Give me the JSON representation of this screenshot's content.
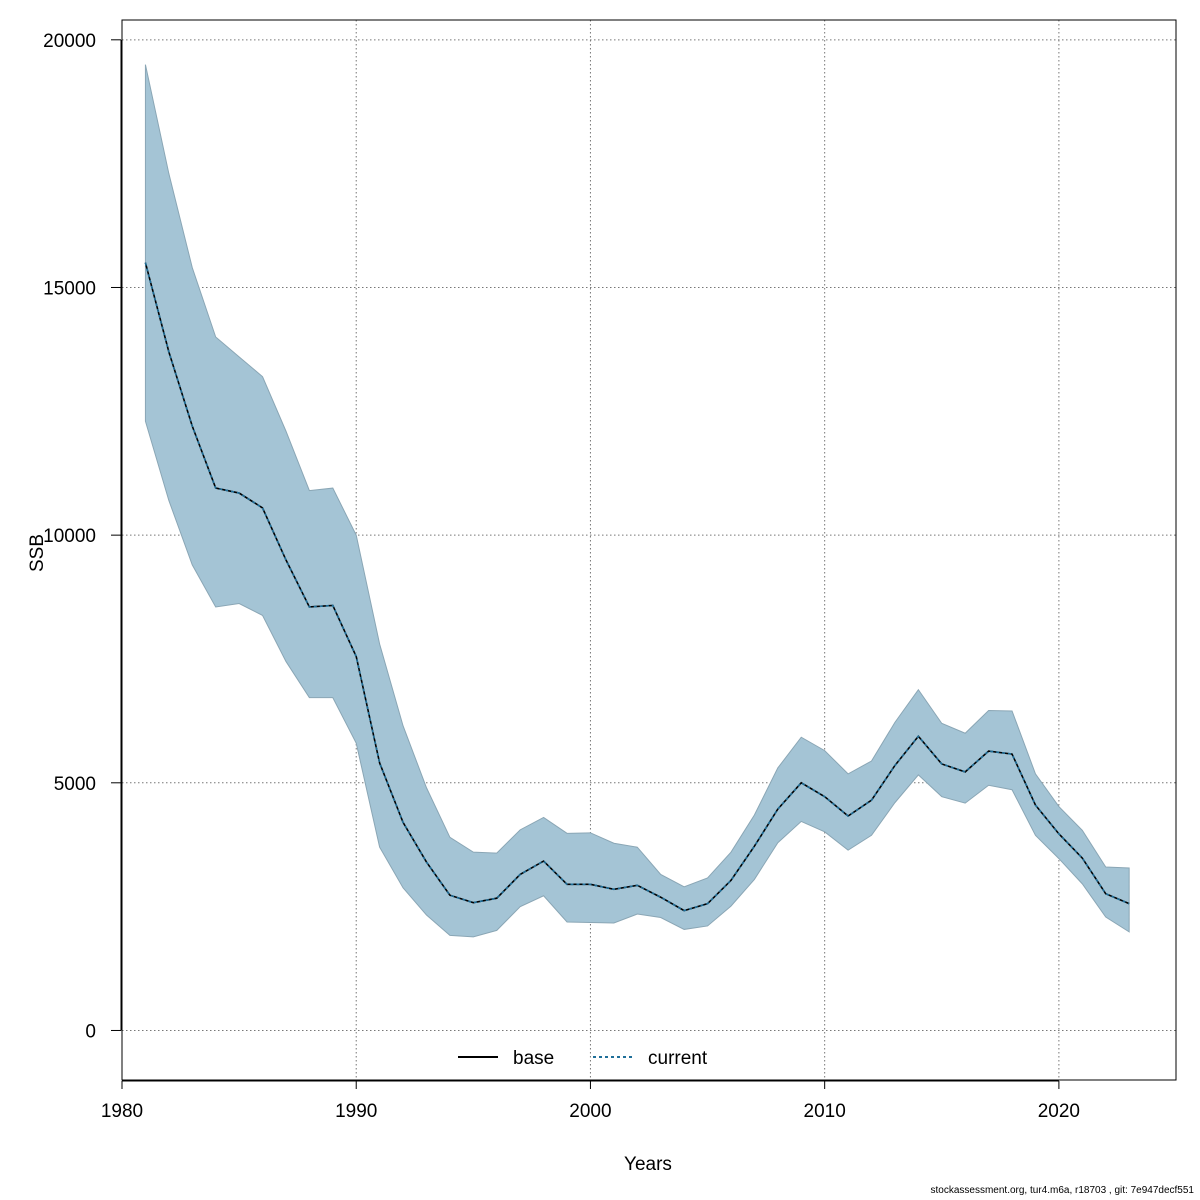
{
  "chart_data": {
    "type": "line",
    "title": "",
    "xlabel": "Years",
    "ylabel": "SSB",
    "xlim": [
      1980,
      2025
    ],
    "ylim": [
      -1000,
      20400
    ],
    "x_ticks": [
      1980,
      1990,
      2000,
      2010,
      2020
    ],
    "y_ticks": [
      0,
      5000,
      10000,
      15000,
      20000
    ],
    "grid": true,
    "legend_position": "bottom",
    "x": [
      1981,
      1982,
      1983,
      1984,
      1985,
      1986,
      1987,
      1988,
      1989,
      1990,
      1991,
      1992,
      1993,
      1994,
      1995,
      1996,
      1997,
      1998,
      1999,
      2000,
      2001,
      2002,
      2003,
      2004,
      2005,
      2006,
      2007,
      2008,
      2009,
      2010,
      2011,
      2012,
      2013,
      2014,
      2015,
      2016,
      2017,
      2018,
      2019,
      2020,
      2021,
      2022,
      2023
    ],
    "band": {
      "color": "#a4c4d5",
      "upper": [
        19500,
        17300,
        15400,
        14000,
        13600,
        13200,
        12100,
        10900,
        10950,
        10000,
        7800,
        6150,
        4900,
        3900,
        3600,
        3580,
        4050,
        4300,
        3980,
        3990,
        3780,
        3700,
        3150,
        2900,
        3080,
        3600,
        4350,
        5300,
        5920,
        5650,
        5180,
        5440,
        6220,
        6880,
        6200,
        6000,
        6460,
        6450,
        5180,
        4520,
        4040,
        3300,
        3280
      ],
      "lower": [
        12300,
        10700,
        9400,
        8550,
        8620,
        8380,
        7450,
        6720,
        6720,
        5800,
        3700,
        2880,
        2330,
        1920,
        1890,
        2020,
        2500,
        2720,
        2190,
        2180,
        2170,
        2350,
        2280,
        2040,
        2110,
        2510,
        3050,
        3790,
        4220,
        4010,
        3640,
        3940,
        4600,
        5160,
        4720,
        4590,
        4950,
        4860,
        3940,
        3470,
        2960,
        2290,
        1990
      ]
    },
    "series": [
      {
        "name": "base",
        "color": "#000000",
        "dash": "solid",
        "values": [
          15500,
          13700,
          12200,
          10950,
          10850,
          10550,
          9500,
          8550,
          8580,
          7550,
          5400,
          4200,
          3400,
          2730,
          2580,
          2670,
          3150,
          3420,
          2950,
          2950,
          2850,
          2930,
          2690,
          2420,
          2560,
          3030,
          3720,
          4470,
          5000,
          4720,
          4330,
          4650,
          5350,
          5940,
          5380,
          5220,
          5640,
          5580,
          4550,
          3970,
          3480,
          2760,
          2560
        ]
      },
      {
        "name": "current",
        "color": "#1f6f99",
        "dash": "dashed",
        "values": [
          15500,
          13700,
          12200,
          10950,
          10850,
          10550,
          9500,
          8550,
          8580,
          7550,
          5400,
          4200,
          3400,
          2730,
          2580,
          2670,
          3150,
          3420,
          2950,
          2950,
          2850,
          2930,
          2690,
          2420,
          2560,
          3030,
          3720,
          4470,
          5000,
          4720,
          4330,
          4650,
          5350,
          5940,
          5380,
          5220,
          5640,
          5580,
          4550,
          3970,
          3480,
          2760,
          2560
        ]
      }
    ]
  },
  "footer": "stockassessment.org, tur4.m6a, r18703 , git: 7e947decf551"
}
